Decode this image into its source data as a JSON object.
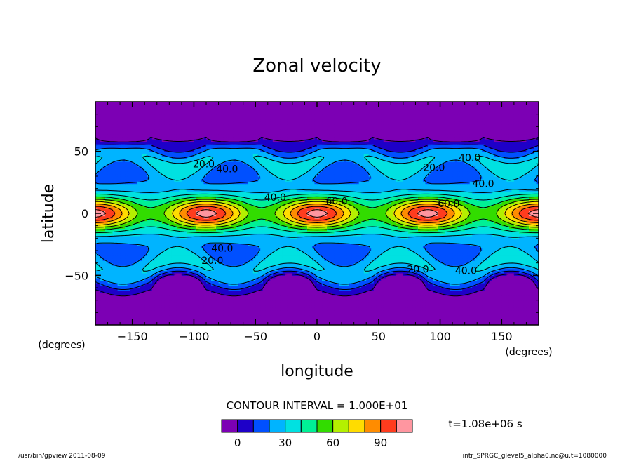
{
  "chart_data": {
    "type": "heatmap",
    "subtype": "filled-contour",
    "title": "Zonal velocity",
    "xlabel": "longitude",
    "ylabel": "latitude",
    "x_unit": "(degrees)",
    "y_unit": "(degrees)",
    "xlim": [
      -180,
      180
    ],
    "ylim": [
      -90,
      90
    ],
    "xticks": [
      -150,
      -100,
      -50,
      0,
      50,
      100,
      150
    ],
    "yticks": [
      50,
      0,
      -50
    ],
    "contour_interval_text": "CONTOUR INTERVAL = 1.000E+01",
    "time_text": "t=1.08e+06 s",
    "levels": [
      -10,
      0,
      10,
      20,
      30,
      40,
      50,
      60,
      70,
      80,
      90,
      100,
      110
    ],
    "level_colors": [
      "#7c00b4",
      "#1e00c8",
      "#0050ff",
      "#00b4ff",
      "#00e1e1",
      "#00f096",
      "#32dc00",
      "#b4f000",
      "#ffdc00",
      "#ff8c00",
      "#ff3c1e",
      "#ff96a0"
    ],
    "colorbar_ticks": [
      0,
      30,
      60,
      90
    ],
    "field_model": {
      "wave_number": 4,
      "equatorial_jet": {
        "mean": 50,
        "amplitude": 30,
        "phase_center_lon": 0,
        "peak_lons": [
          -180,
          -90,
          0,
          90,
          180
        ],
        "minimum_lons": [
          -135,
          -45,
          45,
          135
        ]
      },
      "midlatitude_minimum_value": -5,
      "midlatitude_minimum_lats": [
        60,
        -55
      ]
    },
    "contour_labels": [
      {
        "text": "20.0",
        "lon": -92,
        "lat": 40
      },
      {
        "text": "40.0",
        "lon": -73,
        "lat": 36
      },
      {
        "text": "40.0",
        "lon": -34,
        "lat": 13
      },
      {
        "text": "60.0",
        "lon": 16,
        "lat": 10
      },
      {
        "text": "20.0",
        "lon": 95,
        "lat": 37
      },
      {
        "text": "40.0",
        "lon": 124,
        "lat": 45
      },
      {
        "text": "40.0",
        "lon": 135,
        "lat": 24
      },
      {
        "text": "60.0",
        "lon": 107,
        "lat": 8
      },
      {
        "text": "40.0",
        "lon": -77,
        "lat": -28
      },
      {
        "text": "20.0",
        "lon": -85,
        "lat": -38
      },
      {
        "text": "20.0",
        "lon": 82,
        "lat": -45
      },
      {
        "text": "40.0",
        "lon": 121,
        "lat": -46
      }
    ]
  },
  "footer": {
    "left": "/usr/bin/gpview  2011-08-09",
    "right": "intr_SPRGC_glevel5_alpha0.nc@u,t=1080000"
  }
}
